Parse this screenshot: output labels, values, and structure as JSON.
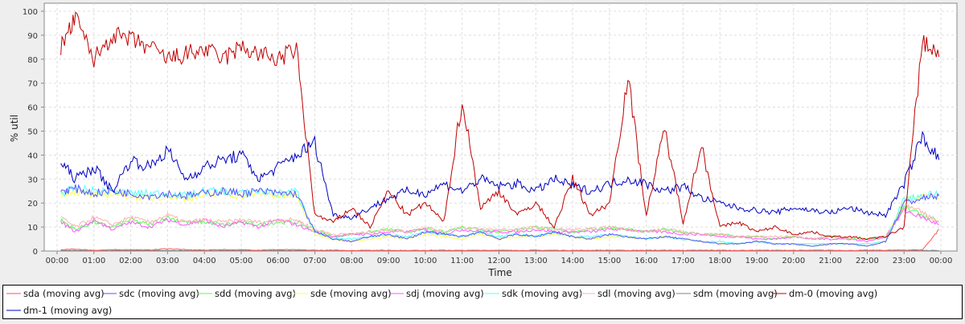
{
  "chart_data": {
    "type": "line",
    "title": "",
    "xlabel": "Time",
    "ylabel": "% util",
    "ylim": [
      0,
      100
    ],
    "xlim_hours": [
      -0.3,
      24.4
    ],
    "grid": true,
    "legend_placement": "bottom",
    "yticks": [
      0,
      10,
      20,
      30,
      40,
      50,
      60,
      70,
      80,
      90,
      100
    ],
    "xtick_labels": [
      "00:00",
      "01:00",
      "02:00",
      "03:00",
      "04:00",
      "05:00",
      "06:00",
      "07:00",
      "08:00",
      "09:00",
      "10:00",
      "11:00",
      "12:00",
      "13:00",
      "14:00",
      "15:00",
      "16:00",
      "17:00",
      "18:00",
      "19:00",
      "20:00",
      "21:00",
      "22:00",
      "23:00",
      "00:00"
    ],
    "x_hours": [
      0.1,
      0.5,
      1,
      1.5,
      2,
      2.5,
      3,
      3.5,
      4,
      4.5,
      5,
      5.5,
      6,
      6.5,
      7,
      7.5,
      8,
      8.5,
      9,
      9.5,
      10,
      10.5,
      11,
      11.5,
      12,
      12.5,
      13,
      13.5,
      14,
      14.5,
      15,
      15.5,
      16,
      16.5,
      17,
      17.5,
      18,
      18.5,
      19,
      19.5,
      20,
      20.5,
      21,
      21.5,
      22,
      22.5,
      23,
      23.5,
      23.95
    ],
    "series": [
      {
        "name": "sda (moving avg)",
        "color": "#ff5555",
        "values": [
          0.5,
          0.8,
          0.3,
          0.5,
          0.6,
          0.4,
          1,
          0.5,
          0.4,
          0.6,
          0.5,
          0.4,
          0.6,
          0.5,
          0.3,
          0.3,
          0.2,
          0.3,
          0.3,
          0.2,
          0.3,
          0.3,
          0.2,
          0.3,
          0.3,
          0.2,
          0.3,
          0.3,
          0.2,
          0.3,
          0.3,
          0.2,
          0.3,
          0.3,
          0.2,
          0.3,
          0.3,
          0.2,
          0.3,
          0.3,
          0.2,
          0.3,
          0.3,
          0.2,
          0.3,
          0.3,
          0.4,
          0.5,
          9
        ]
      },
      {
        "name": "sdc (moving avg)",
        "color": "#5555ff",
        "values": [
          25,
          26,
          24,
          25,
          24,
          23,
          24,
          23,
          24,
          25,
          24,
          25,
          24,
          24,
          8,
          5,
          4,
          6,
          7,
          5,
          8,
          7,
          6,
          8,
          5,
          7,
          6,
          8,
          6,
          5,
          7,
          6,
          5,
          6,
          5,
          4,
          3,
          3,
          4,
          3,
          3,
          2,
          3,
          3,
          2,
          4,
          20,
          22,
          23
        ]
      },
      {
        "name": "sdd (moving avg)",
        "color": "#55ff55",
        "values": [
          13,
          9,
          12,
          10,
          13,
          11,
          14,
          12,
          12,
          11,
          12,
          11,
          12,
          12,
          9,
          6,
          7,
          8,
          9,
          8,
          9,
          8,
          10,
          9,
          8,
          9,
          10,
          9,
          8,
          9,
          10,
          9,
          8,
          9,
          8,
          7,
          7,
          6,
          6,
          5,
          6,
          5,
          6,
          5,
          5,
          6,
          18,
          15,
          12
        ]
      },
      {
        "name": "sde (moving avg)",
        "color": "#ffff55",
        "values": [
          24,
          25,
          23,
          24,
          23,
          22,
          23,
          22,
          23,
          24,
          23,
          24,
          23,
          23,
          7,
          5,
          4,
          5,
          6,
          5,
          7,
          6,
          5,
          7,
          5,
          6,
          6,
          7,
          6,
          5,
          6,
          6,
          5,
          6,
          5,
          4,
          3,
          3,
          4,
          3,
          3,
          2,
          3,
          3,
          2,
          4,
          21,
          23,
          22
        ]
      },
      {
        "name": "sdj (moving avg)",
        "color": "#ff55ff",
        "values": [
          12,
          8,
          13,
          9,
          12,
          10,
          13,
          11,
          13,
          10,
          12,
          10,
          13,
          11,
          8,
          6,
          7,
          7,
          8,
          8,
          9,
          7,
          9,
          8,
          8,
          8,
          9,
          8,
          8,
          8,
          9,
          9,
          8,
          8,
          7,
          7,
          6,
          6,
          5,
          5,
          6,
          5,
          5,
          5,
          4,
          6,
          17,
          14,
          11
        ]
      },
      {
        "name": "sdk (moving avg)",
        "color": "#55ffff",
        "values": [
          24,
          26,
          25,
          25,
          24,
          24,
          24,
          23,
          25,
          25,
          24,
          25,
          24,
          25,
          8,
          5,
          5,
          6,
          7,
          6,
          8,
          7,
          6,
          8,
          6,
          7,
          6,
          8,
          6,
          6,
          7,
          6,
          5,
          6,
          5,
          4,
          4,
          3,
          4,
          3,
          3,
          3,
          3,
          3,
          3,
          4,
          22,
          23,
          24
        ]
      },
      {
        "name": "sdl (moving avg)",
        "color": "#ffafaf",
        "values": [
          14,
          10,
          14,
          11,
          14,
          12,
          15,
          12,
          13,
          12,
          13,
          12,
          13,
          13,
          9,
          7,
          7,
          8,
          9,
          8,
          10,
          8,
          10,
          9,
          9,
          9,
          10,
          9,
          9,
          9,
          10,
          9,
          8,
          9,
          8,
          7,
          7,
          6,
          6,
          6,
          6,
          5,
          6,
          5,
          5,
          6,
          19,
          16,
          12
        ]
      },
      {
        "name": "sdm (moving avg)",
        "color": "#808080",
        "values": [
          0.2,
          0.2,
          0.2,
          0.2,
          0.2,
          0.2,
          0.2,
          0.2,
          0.2,
          0.2,
          0.2,
          0.2,
          0.2,
          0.2,
          0.2,
          0.2,
          0.2,
          0.2,
          0.2,
          0.2,
          0.2,
          0.2,
          0.2,
          0.2,
          0.2,
          0.2,
          0.2,
          0.2,
          0.2,
          0.2,
          0.2,
          0.2,
          0.2,
          0.2,
          0.2,
          0.2,
          0.2,
          0.2,
          0.2,
          0.2,
          0.2,
          0.2,
          0.2,
          0.2,
          0.2,
          0.2,
          0.2,
          0.2,
          0.2
        ]
      },
      {
        "name": "dm-0 (moving avg)",
        "color": "#c00000",
        "values": [
          85,
          97,
          80,
          90,
          88,
          85,
          80,
          82,
          84,
          80,
          85,
          82,
          80,
          84,
          15,
          12,
          18,
          10,
          25,
          15,
          20,
          12,
          63,
          18,
          25,
          15,
          20,
          10,
          30,
          15,
          20,
          73,
          15,
          51,
          12,
          44,
          10,
          12,
          8,
          10,
          7,
          8,
          6,
          6,
          5,
          6,
          10,
          88,
          81
        ]
      },
      {
        "name": "dm-1 (moving avg)",
        "color": "#0000c0",
        "values": [
          37,
          30,
          35,
          25,
          38,
          35,
          42,
          30,
          35,
          38,
          40,
          30,
          35,
          40,
          45,
          15,
          14,
          18,
          22,
          25,
          24,
          28,
          25,
          30,
          27,
          28,
          25,
          30,
          27,
          25,
          28,
          30,
          28,
          25,
          27,
          22,
          20,
          18,
          17,
          16,
          18,
          17,
          16,
          18,
          16,
          15,
          28,
          48,
          38
        ]
      }
    ]
  }
}
